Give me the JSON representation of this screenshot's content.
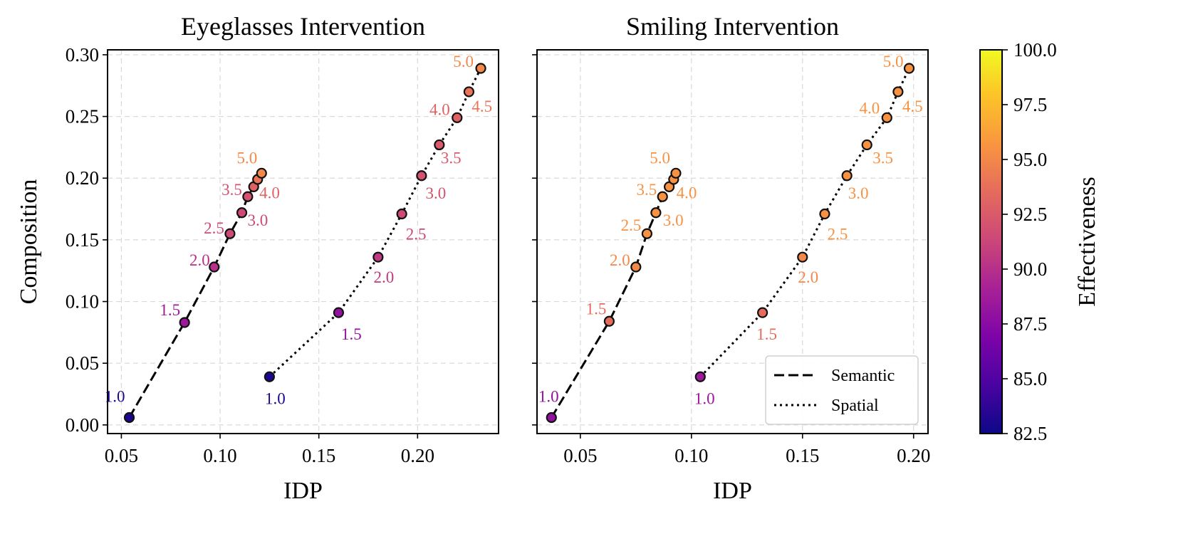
{
  "chart_data": [
    {
      "type": "line",
      "title": "Eyeglasses Intervention",
      "xlabel": "IDP",
      "ylabel": "Composition",
      "xlim": [
        0.043,
        0.241
      ],
      "ylim": [
        -0.007,
        0.304
      ],
      "xticks": [
        0.05,
        0.1,
        0.15,
        0.2
      ],
      "xtick_labels": [
        "0.05",
        "0.10",
        "0.15",
        "0.20"
      ],
      "yticks": [
        0.0,
        0.05,
        0.1,
        0.15,
        0.2,
        0.25,
        0.3
      ],
      "ytick_labels": [
        "0.00",
        "0.05",
        "0.10",
        "0.15",
        "0.20",
        "0.25",
        "0.30"
      ],
      "grid": true,
      "legend": null,
      "series": [
        {
          "name": "Semantic",
          "linestyle": "dashed",
          "x": [
            0.054,
            0.082,
            0.097,
            0.105,
            0.111,
            0.114,
            0.117,
            0.119,
            0.121
          ],
          "y": [
            0.006,
            0.083,
            0.128,
            0.155,
            0.172,
            0.185,
            0.193,
            0.199,
            0.204
          ],
          "effectiveness": [
            83.0,
            88.5,
            90.0,
            91.5,
            91.5,
            92.0,
            93.0,
            94.0,
            95.0
          ],
          "labels": [
            "1.0",
            "1.5",
            "2.0",
            "2.5",
            "3.0",
            "3.5",
            "4.0",
            "4.5",
            "5.0"
          ],
          "label_index": [
            0,
            1,
            2,
            3,
            4,
            5,
            6,
            8
          ]
        },
        {
          "name": "Spatial",
          "linestyle": "dotted",
          "x": [
            0.125,
            0.16,
            0.18,
            0.192,
            0.202,
            0.211,
            0.22,
            0.226,
            0.232
          ],
          "y": [
            0.039,
            0.091,
            0.136,
            0.171,
            0.202,
            0.227,
            0.249,
            0.27,
            0.289
          ],
          "effectiveness": [
            83.0,
            88.0,
            90.5,
            91.5,
            92.0,
            92.5,
            93.0,
            94.0,
            95.0
          ],
          "labels": [
            "1.0",
            "1.5",
            "2.0",
            "2.5",
            "3.0",
            "3.5",
            "4.0",
            "4.5",
            "5.0"
          ],
          "label_index": [
            0,
            1,
            2,
            3,
            4,
            5,
            6,
            7,
            8
          ]
        }
      ]
    },
    {
      "type": "line",
      "title": "Smiling Intervention",
      "xlabel": "IDP",
      "ylabel": "",
      "xlim": [
        0.0305,
        0.2065
      ],
      "ylim": [
        -0.007,
        0.304
      ],
      "xticks": [
        0.05,
        0.1,
        0.15,
        0.2
      ],
      "xtick_labels": [
        "0.05",
        "0.10",
        "0.15",
        "0.20"
      ],
      "yticks": [
        0.0,
        0.05,
        0.1,
        0.15,
        0.2,
        0.25,
        0.3
      ],
      "ytick_labels": [
        "",
        "",
        "",
        "",
        "",
        "",
        ""
      ],
      "grid": true,
      "legend": "lower right",
      "series": [
        {
          "name": "Semantic",
          "linestyle": "dashed",
          "x": [
            0.037,
            0.063,
            0.075,
            0.08,
            0.084,
            0.087,
            0.09,
            0.092,
            0.093
          ],
          "y": [
            0.006,
            0.084,
            0.128,
            0.155,
            0.172,
            0.185,
            0.193,
            0.199,
            0.204
          ],
          "effectiveness": [
            88.0,
            93.5,
            95.0,
            95.5,
            95.5,
            95.5,
            95.5,
            95.5,
            95.5
          ],
          "labels": [
            "1.0",
            "1.5",
            "2.0",
            "2.5",
            "3.0",
            "3.5",
            "4.0",
            "4.5",
            "5.0"
          ],
          "label_index": [
            0,
            1,
            2,
            3,
            4,
            5,
            6,
            8
          ]
        },
        {
          "name": "Spatial",
          "linestyle": "dotted",
          "x": [
            0.104,
            0.132,
            0.15,
            0.16,
            0.17,
            0.179,
            0.188,
            0.193,
            0.198
          ],
          "y": [
            0.039,
            0.091,
            0.136,
            0.171,
            0.202,
            0.227,
            0.249,
            0.27,
            0.289
          ],
          "effectiveness": [
            88.5,
            93.5,
            95.0,
            95.5,
            95.5,
            95.5,
            95.5,
            95.5,
            95.5
          ],
          "labels": [
            "1.0",
            "1.5",
            "2.0",
            "2.5",
            "3.0",
            "3.5",
            "4.0",
            "4.5",
            "5.0"
          ],
          "label_index": [
            0,
            1,
            2,
            3,
            4,
            5,
            6,
            7,
            8
          ]
        }
      ]
    }
  ],
  "colorbar": {
    "label": "Effectiveness",
    "colormap": "plasma",
    "range": [
      82.5,
      100.0
    ],
    "ticks": [
      82.5,
      85.0,
      87.5,
      90.0,
      92.5,
      95.0,
      97.5,
      100.0
    ],
    "tick_labels": [
      "82.5",
      "85.0",
      "87.5",
      "90.0",
      "92.5",
      "95.0",
      "97.5",
      "100.0"
    ]
  },
  "legend": {
    "entries": [
      {
        "label": "Semantic",
        "linestyle": "dashed"
      },
      {
        "label": "Spatial",
        "linestyle": "dotted"
      }
    ]
  },
  "colors": {
    "line": "#000000",
    "grid": "#d9d9d9",
    "marker_edge": "#111111"
  }
}
